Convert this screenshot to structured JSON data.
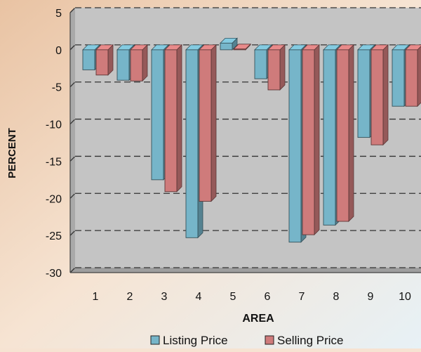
{
  "chart_data": {
    "type": "bar",
    "style": "3d-clustered-column",
    "xlabel": "AREA",
    "ylabel": "PERCENT",
    "categories": [
      "1",
      "2",
      "3",
      "4",
      "5",
      "6",
      "7",
      "8",
      "9",
      "10"
    ],
    "series": [
      {
        "name": "Listing Price",
        "color": "#76b5c9",
        "values": [
          -2.7,
          -4.1,
          -17.5,
          -25.3,
          0.9,
          -3.9,
          -25.9,
          -23.6,
          -11.8,
          -7.6
        ]
      },
      {
        "name": "Selling Price",
        "color": "#cf7b7b",
        "values": [
          -3.4,
          -4.2,
          -19.1,
          -20.4,
          0.1,
          -5.4,
          -24.9,
          -23.1,
          -12.8,
          -7.6
        ]
      }
    ],
    "ylim": [
      -30,
      5
    ],
    "yticks": [
      5,
      0,
      -5,
      -10,
      -15,
      -20,
      -25,
      -30
    ],
    "grid": true,
    "legend_position": "bottom"
  }
}
